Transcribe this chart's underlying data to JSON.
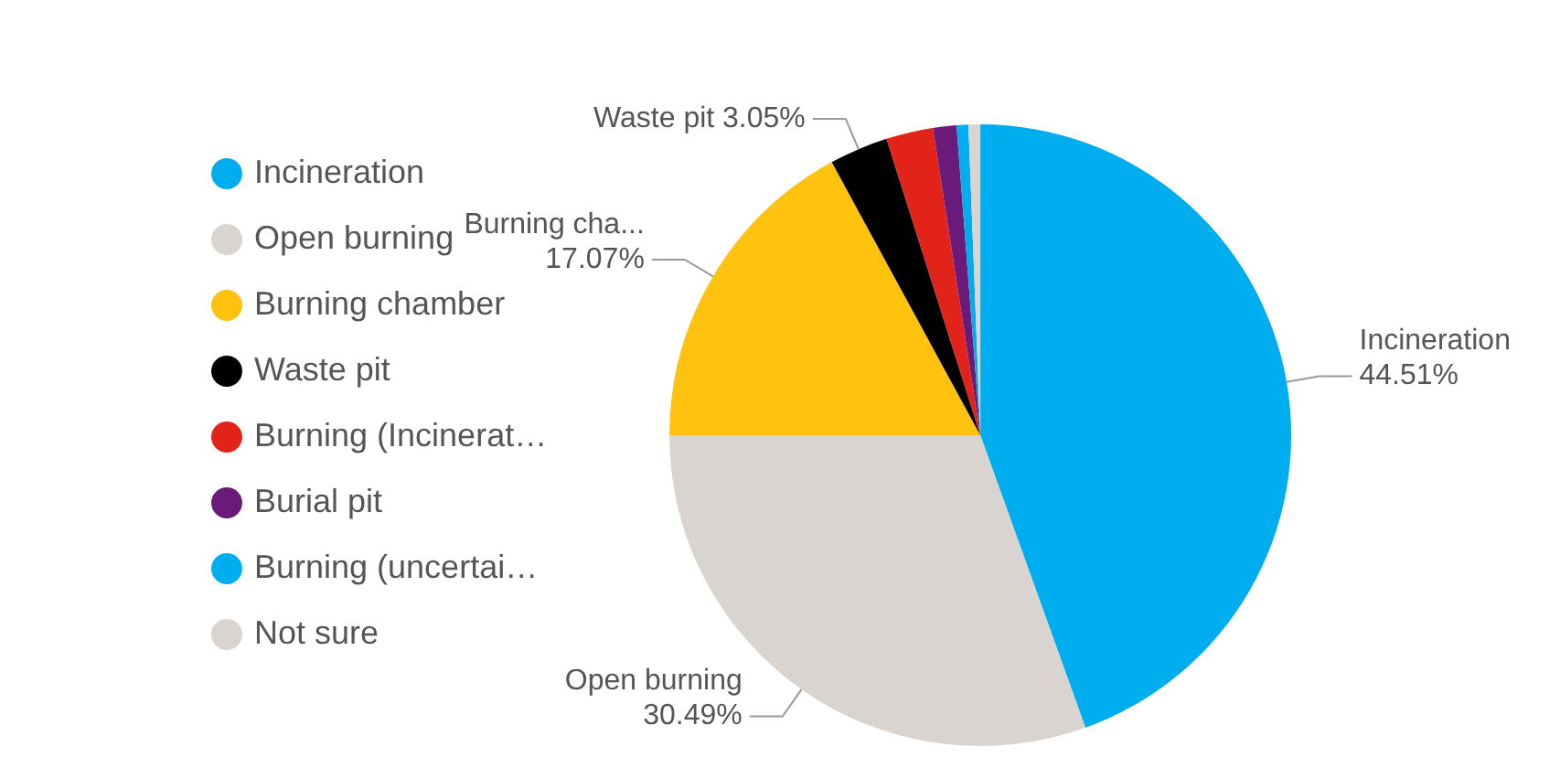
{
  "chart_data": {
    "type": "pie",
    "categories": [
      "Incineration",
      "Open burning",
      "Burning chamber",
      "Waste pit",
      "Burning (Incinerat…",
      "Burial pit",
      "Burning (uncertai…",
      "Not sure"
    ],
    "values": [
      44.51,
      30.49,
      17.07,
      3.05,
      2.44,
      1.22,
      0.61,
      0.61
    ],
    "colors": [
      "#00adef",
      "#d9d4cf",
      "#ffc20e",
      "#000000",
      "#e2231a",
      "#6a1b7a",
      "#00adef",
      "#d9d4cf"
    ],
    "value_labels": [
      "Incineration\n44.51%",
      "Open burning\n30.49%",
      "Burning cha...\n17.07%",
      "Waste pit 3.05%",
      null,
      null,
      null,
      null
    ],
    "legend": "left"
  }
}
